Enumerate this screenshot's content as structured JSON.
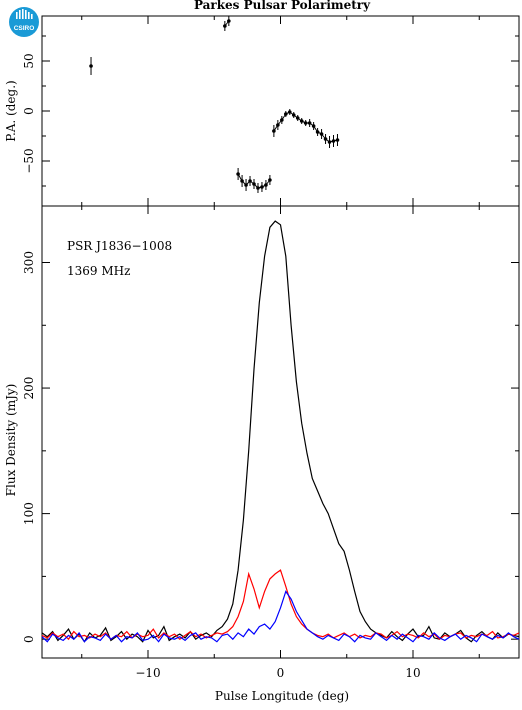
{
  "header": {
    "title": "Parkes Pulsar Polarimetry",
    "logo_text": "CSIRO"
  },
  "chart_data": [
    {
      "type": "scatter",
      "panel": "top",
      "title": "Parkes Pulsar Polarimetry",
      "xlabel": "",
      "ylabel": "P.A. (deg.)",
      "xlim": [
        -18,
        18
      ],
      "ylim": [
        -95,
        95
      ],
      "yticks": [
        -50,
        0,
        50
      ],
      "ytick_labels": [
        "−50",
        "0",
        "50"
      ],
      "errorbars": true,
      "series": [
        {
          "color": "#000000",
          "points": [
            {
              "x": -14.3,
              "y": 45,
              "err": 9
            },
            {
              "x": -4.2,
              "y": 85,
              "err": 5
            },
            {
              "x": -3.9,
              "y": 90,
              "err": 5
            },
            {
              "x": -3.2,
              "y": -63,
              "err": 6
            },
            {
              "x": -2.9,
              "y": -70,
              "err": 6
            },
            {
              "x": -2.6,
              "y": -74,
              "err": 6
            },
            {
              "x": -2.3,
              "y": -70,
              "err": 5
            },
            {
              "x": -2.0,
              "y": -73,
              "err": 5
            },
            {
              "x": -1.7,
              "y": -77,
              "err": 5
            },
            {
              "x": -1.4,
              "y": -76,
              "err": 5
            },
            {
              "x": -1.1,
              "y": -74,
              "err": 5
            },
            {
              "x": -0.8,
              "y": -69,
              "err": 5
            },
            {
              "x": -0.5,
              "y": -20,
              "err": 6
            },
            {
              "x": -0.2,
              "y": -14,
              "err": 5
            },
            {
              "x": 0.1,
              "y": -9,
              "err": 4
            },
            {
              "x": 0.4,
              "y": -3,
              "err": 3
            },
            {
              "x": 0.7,
              "y": -1,
              "err": 3
            },
            {
              "x": 1.0,
              "y": -4,
              "err": 3
            },
            {
              "x": 1.3,
              "y": -7,
              "err": 3
            },
            {
              "x": 1.6,
              "y": -10,
              "err": 3
            },
            {
              "x": 1.9,
              "y": -12,
              "err": 3
            },
            {
              "x": 2.2,
              "y": -12,
              "err": 4
            },
            {
              "x": 2.5,
              "y": -15,
              "err": 4
            },
            {
              "x": 2.8,
              "y": -21,
              "err": 4
            },
            {
              "x": 3.1,
              "y": -23,
              "err": 5
            },
            {
              "x": 3.4,
              "y": -28,
              "err": 5
            },
            {
              "x": 3.7,
              "y": -31,
              "err": 6
            },
            {
              "x": 4.0,
              "y": -30,
              "err": 6
            },
            {
              "x": 4.3,
              "y": -29,
              "err": 6
            }
          ]
        }
      ]
    },
    {
      "type": "line",
      "panel": "bottom",
      "xlabel": "Pulse Longitude (deg)",
      "ylabel": "Flux Density (mJy)",
      "xlim": [
        -18,
        18
      ],
      "ylim": [
        -15,
        345
      ],
      "xticks": [
        -10,
        0,
        10
      ],
      "xtick_labels": [
        "−10",
        "0",
        "10"
      ],
      "yticks": [
        0,
        100,
        200,
        300
      ],
      "ytick_labels": [
        "0",
        "100",
        "200",
        "300"
      ],
      "annotations": [
        "PSR J1836−1008",
        "1369 MHz"
      ],
      "x": [
        -18,
        -17.6,
        -17.2,
        -16.8,
        -16.4,
        -16,
        -15.6,
        -15.2,
        -14.8,
        -14.4,
        -14,
        -13.6,
        -13.2,
        -12.8,
        -12.4,
        -12,
        -11.6,
        -11.2,
        -10.8,
        -10.4,
        -10,
        -9.6,
        -9.2,
        -8.8,
        -8.4,
        -8,
        -7.6,
        -7.2,
        -6.8,
        -6.4,
        -6,
        -5.6,
        -5.2,
        -4.8,
        -4.4,
        -4,
        -3.6,
        -3.2,
        -2.8,
        -2.4,
        -2,
        -1.6,
        -1.2,
        -0.8,
        -0.4,
        0,
        0.4,
        0.8,
        1.2,
        1.6,
        2,
        2.4,
        2.8,
        3.2,
        3.6,
        4,
        4.4,
        4.8,
        5.2,
        5.6,
        6,
        6.4,
        6.8,
        7.2,
        7.6,
        8,
        8.4,
        8.8,
        9.2,
        9.6,
        10,
        10.4,
        10.8,
        11.2,
        11.6,
        12,
        12.4,
        12.8,
        13.2,
        13.6,
        14,
        14.4,
        14.8,
        15.2,
        15.6,
        16,
        16.4,
        16.8,
        17.2,
        17.6,
        18
      ],
      "series": [
        {
          "color": "#000000",
          "values": [
            5,
            2,
            6,
            -1,
            3,
            8,
            0,
            4,
            -2,
            5,
            1,
            3,
            9,
            -1,
            2,
            6,
            0,
            4,
            2,
            -2,
            7,
            1,
            3,
            10,
            -1,
            2,
            4,
            1,
            6,
            0,
            3,
            5,
            2,
            7,
            10,
            16,
            28,
            55,
            95,
            150,
            215,
            268,
            305,
            328,
            333,
            330,
            305,
            250,
            205,
            172,
            148,
            128,
            118,
            108,
            100,
            88,
            76,
            70,
            55,
            38,
            22,
            14,
            8,
            5,
            3,
            1,
            6,
            2,
            -1,
            4,
            8,
            2,
            3,
            10,
            1,
            0,
            5,
            2,
            4,
            7,
            1,
            -2,
            3,
            6,
            2,
            0,
            5,
            1,
            4,
            3,
            2
          ]
        },
        {
          "color": "#ff0000",
          "values": [
            3,
            1,
            5,
            2,
            4,
            0,
            6,
            2,
            3,
            1,
            4,
            2,
            5,
            0,
            3,
            2,
            6,
            1,
            4,
            2,
            3,
            8,
            1,
            5,
            2,
            4,
            0,
            3,
            6,
            2,
            4,
            1,
            3,
            5,
            4,
            6,
            10,
            18,
            30,
            52,
            40,
            25,
            38,
            48,
            52,
            55,
            42,
            28,
            18,
            12,
            8,
            5,
            3,
            2,
            4,
            1,
            3,
            5,
            2,
            4,
            1,
            3,
            2,
            5,
            4,
            1,
            3,
            6,
            2,
            4,
            3,
            1,
            5,
            2,
            4,
            0,
            3,
            2,
            4,
            5,
            1,
            3,
            2,
            4,
            3,
            6,
            1,
            2,
            4,
            3,
            5
          ]
        },
        {
          "color": "#0000ff",
          "values": [
            2,
            -2,
            4,
            1,
            -1,
            3,
            0,
            5,
            -2,
            2,
            1,
            -1,
            4,
            0,
            3,
            -2,
            2,
            1,
            5,
            -1,
            0,
            3,
            -2,
            4,
            1,
            0,
            2,
            -1,
            3,
            5,
            0,
            2,
            1,
            -2,
            3,
            4,
            0,
            5,
            2,
            8,
            4,
            10,
            12,
            8,
            14,
            25,
            38,
            32,
            22,
            15,
            8,
            5,
            2,
            0,
            3,
            1,
            -1,
            4,
            2,
            -2,
            3,
            1,
            0,
            5,
            2,
            -1,
            3,
            0,
            4,
            1,
            -2,
            3,
            2,
            0,
            5,
            1,
            -1,
            2,
            4,
            0,
            3,
            1,
            -2,
            4,
            2,
            0,
            3,
            1,
            5,
            2,
            0
          ]
        }
      ]
    }
  ]
}
